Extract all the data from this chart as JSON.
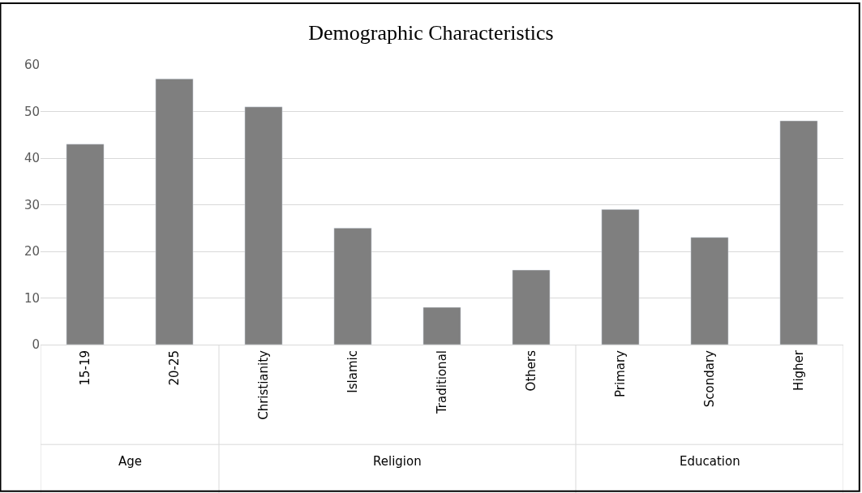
{
  "chart_data": {
    "type": "bar",
    "title": "Demographic Characteristics",
    "categories": [
      "15-19",
      "20-25",
      "Christianity",
      "Islamic",
      "Traditional",
      "Others",
      "Primary",
      "Scondary",
      "Higher"
    ],
    "values": [
      43,
      57,
      51,
      25,
      8,
      16,
      29,
      23,
      48
    ],
    "color": "#7f7f7f",
    "ylim": [
      0,
      60
    ],
    "yticks": [
      0,
      10,
      20,
      30,
      40,
      50,
      60
    ],
    "grid": "y",
    "annotations": [
      "Age",
      "Religion",
      "Education"
    ]
  }
}
